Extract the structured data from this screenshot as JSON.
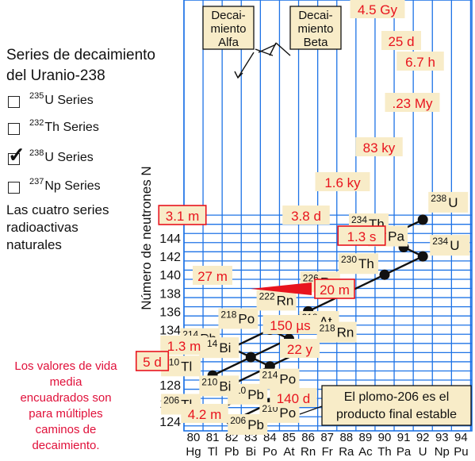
{
  "side": {
    "title_line1": "Series de decaimiento",
    "title_line2": "del Uranio-238",
    "series": [
      {
        "mass": "235",
        "elem": "U Series",
        "checked": false
      },
      {
        "mass": "232",
        "elem": "Th Series",
        "checked": false
      },
      {
        "mass": "238",
        "elem": "U Series",
        "checked": true
      },
      {
        "mass": "237",
        "elem": "Np Series",
        "checked": false
      }
    ],
    "caption_line1": "Las cuatro series",
    "caption_line2": "radioactivas",
    "caption_line3": "naturales",
    "note": "Los valores de vida media encuadrados son para múltiples caminos de decaimiento."
  },
  "chart": {
    "ylabel": "Número de neutrones N",
    "y_ticks": [
      "124",
      "126",
      "128",
      "130",
      "132",
      "134",
      "136",
      "138",
      "140",
      "142",
      "144"
    ],
    "z_numbers": [
      "80",
      "81",
      "82",
      "83",
      "84",
      "85",
      "86",
      "87",
      "88",
      "89",
      "90",
      "91",
      "92",
      "93",
      "94"
    ],
    "z_symbols": [
      "Hg",
      "Tl",
      "Pb",
      "Bi",
      "Po",
      "At",
      "Rn",
      "Fr",
      "Ra",
      "Ac",
      "Th",
      "Pa",
      "U",
      "Np",
      "Pu"
    ],
    "legend_alpha": [
      "Decai-",
      "miento",
      "Alfa"
    ],
    "legend_beta": [
      "Decai-",
      "miento",
      "Beta"
    ],
    "final_note_line1": "El plomo-206 es el",
    "final_note_line2": "producto final estable",
    "colors": {
      "grid": "#1e73e6",
      "label_bg": "#f8ecc8",
      "halflife": "#e8141e",
      "box_border": "#e8141e"
    }
  },
  "nuclides": [
    {
      "mass": "238",
      "sym": "U",
      "Z": 92,
      "N": 146
    },
    {
      "mass": "234",
      "sym": "Th",
      "Z": 90,
      "N": 144
    },
    {
      "mass": "234",
      "sym": "Pa",
      "Z": 91,
      "N": 143
    },
    {
      "mass": "234",
      "sym": "U",
      "Z": 92,
      "N": 142
    },
    {
      "mass": "230",
      "sym": "Th",
      "Z": 90,
      "N": 140
    },
    {
      "mass": "226",
      "sym": "Ra",
      "Z": 88,
      "N": 138
    },
    {
      "mass": "222",
      "sym": "Rn",
      "Z": 86,
      "N": 136
    },
    {
      "mass": "218",
      "sym": "Po",
      "Z": 84,
      "N": 134
    },
    {
      "mass": "218",
      "sym": "At",
      "Z": 85,
      "N": 133
    },
    {
      "mass": "214",
      "sym": "Pb",
      "Z": 82,
      "N": 132
    },
    {
      "mass": "218",
      "sym": "Rn",
      "Z": 86,
      "N": 132
    },
    {
      "mass": "214",
      "sym": "Bi",
      "Z": 83,
      "N": 131
    },
    {
      "mass": "214",
      "sym": "Po",
      "Z": 84,
      "N": 130
    },
    {
      "mass": "210",
      "sym": "Tl",
      "Z": 81,
      "N": 129
    },
    {
      "mass": "210",
      "sym": "Pb",
      "Z": 82,
      "N": 128
    },
    {
      "mass": "210",
      "sym": "Bi",
      "Z": 83,
      "N": 127
    },
    {
      "mass": "210",
      "sym": "Po",
      "Z": 84,
      "N": 126
    },
    {
      "mass": "206",
      "sym": "Tl",
      "Z": 81,
      "N": 125
    },
    {
      "mass": "206",
      "sym": "Pb",
      "Z": 82,
      "N": 124
    }
  ],
  "half_lives": [
    {
      "text": "4.5 Gy",
      "boxed": false
    },
    {
      "text": "25 d",
      "boxed": false
    },
    {
      "text": "6.7 h",
      "boxed": false
    },
    {
      "text": ".23 My",
      "boxed": false
    },
    {
      "text": "83 ky",
      "boxed": false
    },
    {
      "text": "1.6 ky",
      "boxed": false
    },
    {
      "text": "3.8 d",
      "boxed": false
    },
    {
      "text": "3.1 m",
      "boxed": true
    },
    {
      "text": "1.3 s",
      "boxed": true
    },
    {
      "text": "27 m",
      "boxed": false
    },
    {
      "text": "20 m",
      "boxed": true
    },
    {
      "text": "150 µs",
      "boxed": false
    },
    {
      "text": "1.3 m",
      "boxed": false
    },
    {
      "text": "22 y",
      "boxed": false
    },
    {
      "text": "5 d",
      "boxed": true
    },
    {
      "text": "140 d",
      "boxed": false
    },
    {
      "text": "4.2 m",
      "boxed": false
    }
  ]
}
